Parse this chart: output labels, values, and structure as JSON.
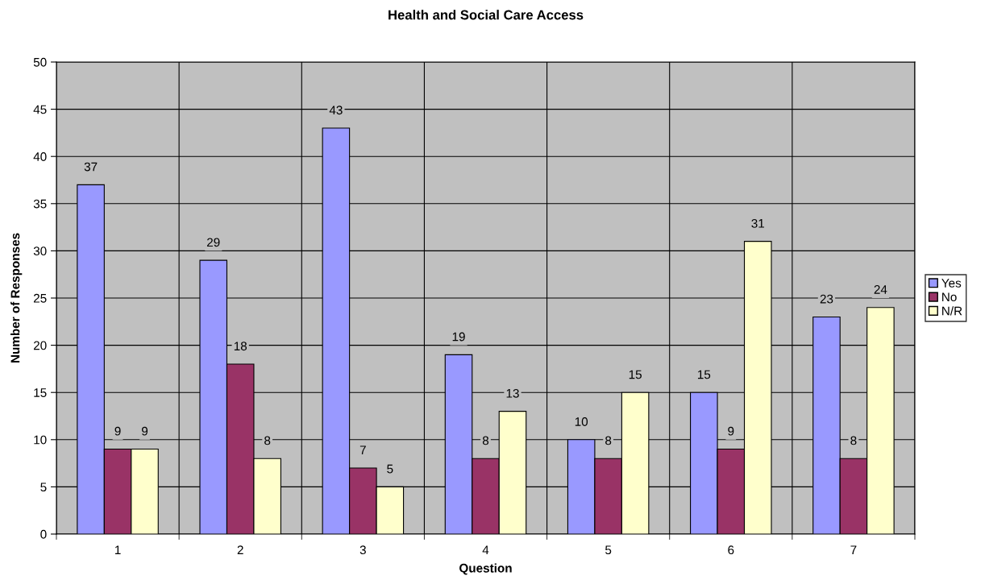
{
  "chart_data": {
    "type": "bar",
    "title": "Health and Social Care Access",
    "xlabel": "Question",
    "ylabel": "Number of Responses",
    "categories": [
      "1",
      "2",
      "3",
      "4",
      "5",
      "6",
      "7"
    ],
    "series": [
      {
        "name": "Yes",
        "color": "#9999ff",
        "values": [
          37,
          29,
          43,
          19,
          10,
          15,
          23
        ]
      },
      {
        "name": "No",
        "color": "#993366",
        "values": [
          9,
          18,
          7,
          8,
          8,
          9,
          8
        ]
      },
      {
        "name": "N/R",
        "color": "#ffffcc",
        "values": [
          9,
          8,
          5,
          13,
          15,
          31,
          24
        ]
      }
    ],
    "ylim": [
      0,
      50
    ],
    "yticks": [
      0,
      5,
      10,
      15,
      20,
      25,
      30,
      35,
      40,
      45,
      50
    ],
    "grid": true,
    "legend": "right",
    "data_labels": true
  }
}
